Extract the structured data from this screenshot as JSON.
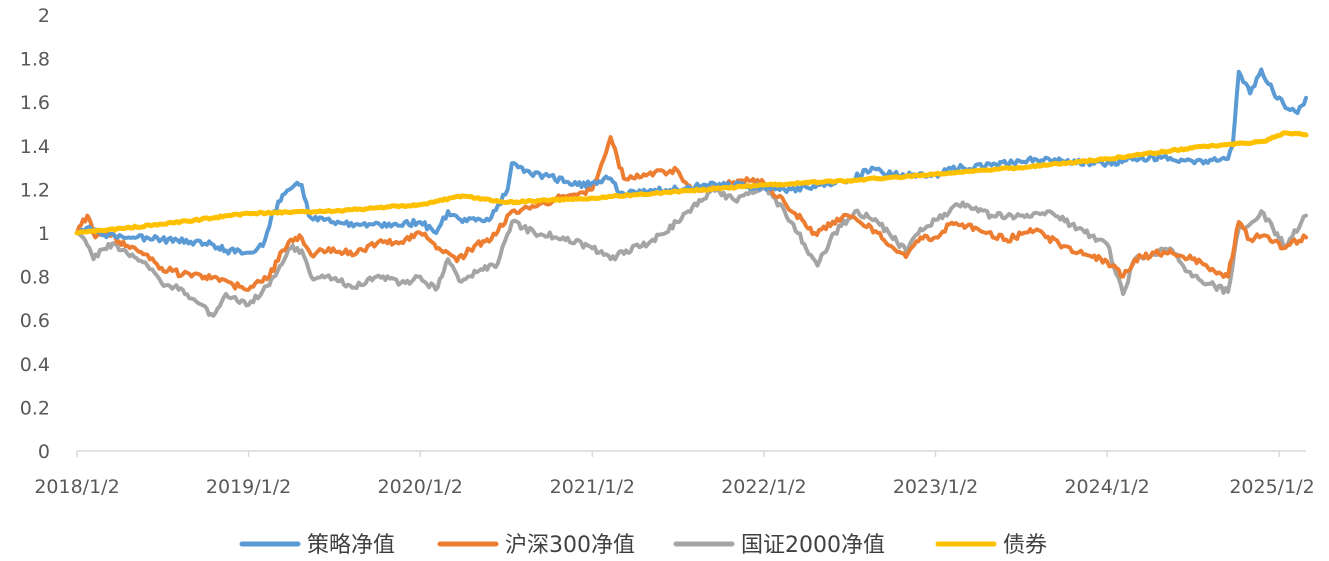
{
  "chart_data": {
    "type": "line",
    "ylim": [
      0,
      2
    ],
    "yticks": [
      "0",
      "0.2",
      "0.4",
      "0.6",
      "0.8",
      "1",
      "1.2",
      "1.4",
      "1.6",
      "1.8",
      "2"
    ],
    "xticks": [
      "2018/1/2",
      "2019/1/2",
      "2020/1/2",
      "2021/1/2",
      "2022/1/2",
      "2023/1/2",
      "2024/1/2",
      "2025/1/2"
    ],
    "xrange": [
      "2018/1/2",
      "2025/2/28"
    ],
    "grid": false,
    "legend_position": "bottom",
    "series": [
      {
        "name": "策略净值",
        "color": "#5B9BD5",
        "points": [
          [
            "2018-01-02",
            1.0
          ],
          [
            "2018-02-01",
            1.02
          ],
          [
            "2018-03-01",
            0.99
          ],
          [
            "2018-05-01",
            0.98
          ],
          [
            "2018-07-01",
            0.97
          ],
          [
            "2018-09-01",
            0.96
          ],
          [
            "2018-10-15",
            0.95
          ],
          [
            "2018-11-15",
            0.92
          ],
          [
            "2019-01-02",
            0.91
          ],
          [
            "2019-02-01",
            0.94
          ],
          [
            "2019-02-25",
            1.1
          ],
          [
            "2019-03-20",
            1.18
          ],
          [
            "2019-04-10",
            1.22
          ],
          [
            "2019-04-25",
            1.22
          ],
          [
            "2019-05-10",
            1.08
          ],
          [
            "2019-07-01",
            1.05
          ],
          [
            "2019-09-01",
            1.04
          ],
          [
            "2019-11-01",
            1.03
          ],
          [
            "2020-01-02",
            1.05
          ],
          [
            "2020-02-05",
            1.0
          ],
          [
            "2020-03-01",
            1.1
          ],
          [
            "2020-04-01",
            1.05
          ],
          [
            "2020-06-01",
            1.07
          ],
          [
            "2020-07-06",
            1.2
          ],
          [
            "2020-07-15",
            1.32
          ],
          [
            "2020-08-10",
            1.28
          ],
          [
            "2020-10-01",
            1.26
          ],
          [
            "2020-12-01",
            1.22
          ],
          [
            "2021-01-02",
            1.23
          ],
          [
            "2021-02-10",
            1.25
          ],
          [
            "2021-03-01",
            1.18
          ],
          [
            "2021-05-01",
            1.19
          ],
          [
            "2021-07-01",
            1.2
          ],
          [
            "2021-09-01",
            1.22
          ],
          [
            "2021-11-01",
            1.22
          ],
          [
            "2022-01-02",
            1.21
          ],
          [
            "2022-03-01",
            1.2
          ],
          [
            "2022-05-01",
            1.22
          ],
          [
            "2022-07-01",
            1.24
          ],
          [
            "2022-08-20",
            1.3
          ],
          [
            "2022-10-01",
            1.27
          ],
          [
            "2023-01-02",
            1.27
          ],
          [
            "2023-03-01",
            1.3
          ],
          [
            "2023-05-01",
            1.31
          ],
          [
            "2023-08-01",
            1.34
          ],
          [
            "2023-10-01",
            1.33
          ],
          [
            "2024-01-02",
            1.32
          ],
          [
            "2024-03-01",
            1.34
          ],
          [
            "2024-05-01",
            1.35
          ],
          [
            "2024-07-01",
            1.33
          ],
          [
            "2024-09-15",
            1.34
          ],
          [
            "2024-09-25",
            1.4
          ],
          [
            "2024-10-08",
            1.74
          ],
          [
            "2024-11-01",
            1.64
          ],
          [
            "2024-11-25",
            1.75
          ],
          [
            "2024-12-20",
            1.65
          ],
          [
            "2025-01-20",
            1.57
          ],
          [
            "2025-02-10",
            1.55
          ],
          [
            "2025-02-28",
            1.62
          ]
        ]
      },
      {
        "name": "沪深300净值",
        "color": "#ED7D31",
        "points": [
          [
            "2018-01-02",
            1.0
          ],
          [
            "2018-01-24",
            1.08
          ],
          [
            "2018-02-10",
            0.98
          ],
          [
            "2018-03-10",
            1.0
          ],
          [
            "2018-04-15",
            0.94
          ],
          [
            "2018-06-01",
            0.9
          ],
          [
            "2018-07-01",
            0.84
          ],
          [
            "2018-08-15",
            0.81
          ],
          [
            "2018-10-01",
            0.8
          ],
          [
            "2018-11-01",
            0.78
          ],
          [
            "2019-01-02",
            0.74
          ],
          [
            "2019-02-15",
            0.8
          ],
          [
            "2019-03-15",
            0.92
          ],
          [
            "2019-04-20",
            0.99
          ],
          [
            "2019-05-15",
            0.9
          ],
          [
            "2019-07-01",
            0.93
          ],
          [
            "2019-08-15",
            0.9
          ],
          [
            "2019-10-01",
            0.95
          ],
          [
            "2019-12-01",
            0.97
          ],
          [
            "2020-01-02",
            1.0
          ],
          [
            "2020-02-01",
            0.95
          ],
          [
            "2020-03-20",
            0.87
          ],
          [
            "2020-05-01",
            0.95
          ],
          [
            "2020-06-01",
            0.97
          ],
          [
            "2020-07-15",
            1.1
          ],
          [
            "2020-09-01",
            1.12
          ],
          [
            "2020-11-01",
            1.17
          ],
          [
            "2021-01-02",
            1.2
          ],
          [
            "2021-02-10",
            1.44
          ],
          [
            "2021-03-10",
            1.25
          ],
          [
            "2021-05-01",
            1.27
          ],
          [
            "2021-07-01",
            1.29
          ],
          [
            "2021-08-01",
            1.2
          ],
          [
            "2021-10-01",
            1.22
          ],
          [
            "2021-12-01",
            1.24
          ],
          [
            "2022-01-02",
            1.23
          ],
          [
            "2022-02-15",
            1.14
          ],
          [
            "2022-04-20",
            1.0
          ],
          [
            "2022-07-01",
            1.08
          ],
          [
            "2022-09-01",
            1.0
          ],
          [
            "2022-10-31",
            0.89
          ],
          [
            "2022-12-01",
            0.98
          ],
          [
            "2023-01-02",
            0.98
          ],
          [
            "2023-02-01",
            1.04
          ],
          [
            "2023-04-01",
            1.02
          ],
          [
            "2023-06-01",
            0.97
          ],
          [
            "2023-08-01",
            1.01
          ],
          [
            "2023-10-01",
            0.94
          ],
          [
            "2023-12-01",
            0.89
          ],
          [
            "2024-01-02",
            0.87
          ],
          [
            "2024-02-05",
            0.8
          ],
          [
            "2024-03-01",
            0.88
          ],
          [
            "2024-05-15",
            0.92
          ],
          [
            "2024-07-01",
            0.88
          ],
          [
            "2024-09-15",
            0.8
          ],
          [
            "2024-10-08",
            1.05
          ],
          [
            "2024-11-01",
            0.97
          ],
          [
            "2024-12-01",
            0.99
          ],
          [
            "2025-01-10",
            0.93
          ],
          [
            "2025-02-28",
            0.98
          ]
        ]
      },
      {
        "name": "国证2000净值",
        "color": "#A5A5A5",
        "points": [
          [
            "2018-01-02",
            1.0
          ],
          [
            "2018-01-15",
            0.98
          ],
          [
            "2018-02-06",
            0.88
          ],
          [
            "2018-03-10",
            0.95
          ],
          [
            "2018-04-15",
            0.92
          ],
          [
            "2018-06-01",
            0.85
          ],
          [
            "2018-07-01",
            0.77
          ],
          [
            "2018-08-15",
            0.74
          ],
          [
            "2018-10-19",
            0.62
          ],
          [
            "2018-11-15",
            0.72
          ],
          [
            "2019-01-02",
            0.67
          ],
          [
            "2019-02-15",
            0.76
          ],
          [
            "2019-04-01",
            0.93
          ],
          [
            "2019-04-25",
            0.92
          ],
          [
            "2019-05-15",
            0.8
          ],
          [
            "2019-07-01",
            0.79
          ],
          [
            "2019-08-15",
            0.75
          ],
          [
            "2019-10-01",
            0.8
          ],
          [
            "2019-12-01",
            0.77
          ],
          [
            "2020-01-02",
            0.8
          ],
          [
            "2020-02-04",
            0.74
          ],
          [
            "2020-03-01",
            0.88
          ],
          [
            "2020-03-25",
            0.78
          ],
          [
            "2020-05-01",
            0.82
          ],
          [
            "2020-06-15",
            0.86
          ],
          [
            "2020-07-15",
            1.05
          ],
          [
            "2020-09-01",
            1.0
          ],
          [
            "2020-11-01",
            0.98
          ],
          [
            "2021-01-02",
            0.93
          ],
          [
            "2021-02-10",
            0.88
          ],
          [
            "2021-03-15",
            0.92
          ],
          [
            "2021-05-01",
            0.95
          ],
          [
            "2021-07-01",
            1.05
          ],
          [
            "2021-09-15",
            1.2
          ],
          [
            "2021-11-01",
            1.15
          ],
          [
            "2022-01-02",
            1.22
          ],
          [
            "2022-02-15",
            1.1
          ],
          [
            "2022-04-26",
            0.85
          ],
          [
            "2022-06-01",
            1.0
          ],
          [
            "2022-07-15",
            1.1
          ],
          [
            "2022-09-01",
            1.05
          ],
          [
            "2022-10-31",
            0.92
          ],
          [
            "2022-12-01",
            1.02
          ],
          [
            "2023-01-02",
            1.06
          ],
          [
            "2023-03-01",
            1.14
          ],
          [
            "2023-05-01",
            1.08
          ],
          [
            "2023-07-01",
            1.08
          ],
          [
            "2023-09-01",
            1.1
          ],
          [
            "2023-11-01",
            1.02
          ],
          [
            "2024-01-02",
            0.95
          ],
          [
            "2024-02-05",
            0.72
          ],
          [
            "2024-03-01",
            0.88
          ],
          [
            "2024-05-15",
            0.93
          ],
          [
            "2024-07-01",
            0.8
          ],
          [
            "2024-09-15",
            0.73
          ],
          [
            "2024-10-08",
            1.02
          ],
          [
            "2024-11-01",
            1.04
          ],
          [
            "2024-11-25",
            1.1
          ],
          [
            "2024-12-20",
            1.02
          ],
          [
            "2025-01-15",
            0.94
          ],
          [
            "2025-02-28",
            1.08
          ]
        ]
      },
      {
        "name": "债券",
        "color": "#FFC000",
        "points": [
          [
            "2018-01-02",
            1.0
          ],
          [
            "2018-07-01",
            1.04
          ],
          [
            "2019-01-02",
            1.09
          ],
          [
            "2019-07-01",
            1.1
          ],
          [
            "2020-01-02",
            1.13
          ],
          [
            "2020-04-01",
            1.17
          ],
          [
            "2020-07-01",
            1.14
          ],
          [
            "2021-01-02",
            1.16
          ],
          [
            "2021-07-01",
            1.19
          ],
          [
            "2022-01-02",
            1.22
          ],
          [
            "2022-07-01",
            1.24
          ],
          [
            "2023-01-02",
            1.27
          ],
          [
            "2023-07-01",
            1.3
          ],
          [
            "2024-01-02",
            1.34
          ],
          [
            "2024-07-01",
            1.39
          ],
          [
            "2024-12-01",
            1.42
          ],
          [
            "2025-01-15",
            1.46
          ],
          [
            "2025-02-28",
            1.45
          ]
        ]
      }
    ]
  }
}
